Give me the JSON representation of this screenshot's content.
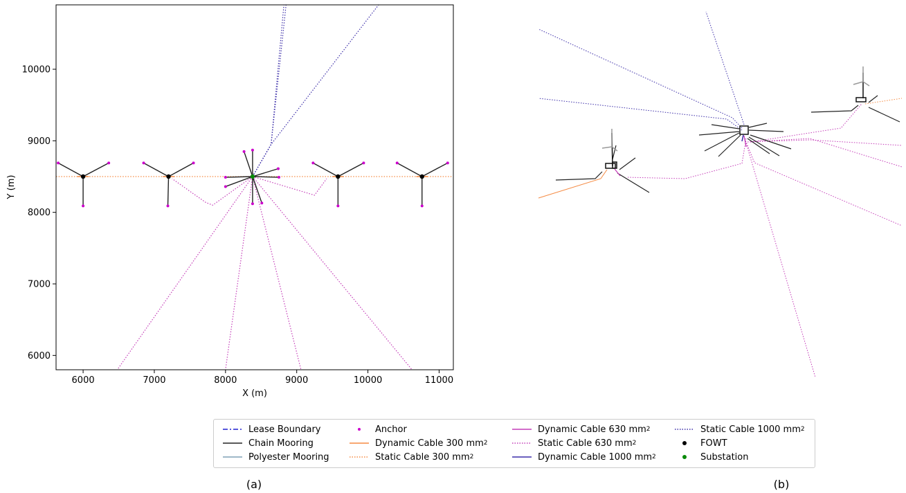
{
  "panel_labels": {
    "a": "(a)",
    "b": "(b)"
  },
  "chart_data": [
    {
      "type": "scatter",
      "xlabel": "X (m)",
      "ylabel": "Y (m)",
      "xlim": [
        5620,
        11200
      ],
      "ylim": [
        5800,
        10900
      ],
      "xticks": [
        6000,
        7000,
        8000,
        9000,
        10000,
        11000
      ],
      "yticks": [
        6000,
        7000,
        8000,
        9000,
        10000
      ],
      "substation": [
        8380,
        8500
      ],
      "fowt": [
        [
          6000,
          8500
        ],
        [
          7200,
          8500
        ],
        [
          9580,
          8500
        ],
        [
          10760,
          8500
        ]
      ],
      "anchors": [
        [
          5650,
          8690
        ],
        [
          6360,
          8690
        ],
        [
          6000,
          8090
        ],
        [
          6850,
          8690
        ],
        [
          7550,
          8690
        ],
        [
          7190,
          8090
        ],
        [
          9230,
          8690
        ],
        [
          9940,
          8690
        ],
        [
          9580,
          8090
        ],
        [
          10410,
          8690
        ],
        [
          11120,
          8690
        ],
        [
          10760,
          8090
        ],
        [
          8260,
          8850
        ],
        [
          8380,
          8870
        ],
        [
          8000,
          8490
        ],
        [
          8000,
          8360
        ],
        [
          8740,
          8610
        ],
        [
          8750,
          8490
        ],
        [
          8380,
          8120
        ],
        [
          8510,
          8130
        ]
      ],
      "static_cable_1000": [
        [
          [
            8380,
            8500
          ],
          [
            8640,
            8950
          ],
          [
            8850,
            10900
          ]
        ],
        [
          [
            8380,
            8500
          ],
          [
            8640,
            8950
          ],
          [
            8820,
            10900
          ]
        ],
        [
          [
            8380,
            8500
          ],
          [
            8640,
            8950
          ],
          [
            10150,
            10900
          ]
        ]
      ],
      "static_cable_630": [
        [
          [
            8380,
            8500
          ],
          [
            7820,
            8100
          ],
          [
            7720,
            8140
          ],
          [
            7250,
            8470
          ]
        ],
        [
          [
            8380,
            8500
          ],
          [
            9250,
            8240
          ],
          [
            9420,
            8470
          ]
        ],
        [
          [
            8380,
            8500
          ],
          [
            6480,
            5800
          ]
        ],
        [
          [
            8380,
            8500
          ],
          [
            8000,
            5800
          ]
        ],
        [
          [
            8380,
            8500
          ],
          [
            9060,
            5800
          ]
        ],
        [
          [
            8380,
            8500
          ],
          [
            10620,
            5800
          ]
        ]
      ],
      "static_cable_300": [
        [
          [
            5620,
            8500
          ],
          [
            11200,
            8500
          ]
        ]
      ]
    }
  ],
  "legend": {
    "items": [
      {
        "label": "Lease Boundary",
        "sup": "",
        "style": "dashdot",
        "color": "#1f1fcf"
      },
      {
        "label": "Chain Mooring",
        "sup": "",
        "style": "solid",
        "color": "#222222"
      },
      {
        "label": "Polyester Mooring",
        "sup": "",
        "style": "solid",
        "color": "#7ea1b5"
      },
      {
        "label": "Anchor",
        "sup": "",
        "style": "dot",
        "color": "#cc00cc"
      },
      {
        "label": "Dynamic Cable 300 mm",
        "sup": "2",
        "style": "solid",
        "color": "#f58a42"
      },
      {
        "label": "Static Cable 300 mm",
        "sup": "2",
        "style": "dotted",
        "color": "#f58a42"
      },
      {
        "label": "Dynamic Cable 630 mm",
        "sup": "2",
        "style": "solid",
        "color": "#c43cb8"
      },
      {
        "label": "Static Cable 630 mm",
        "sup": "2",
        "style": "dotted",
        "color": "#c43cb8"
      },
      {
        "label": "Dynamic Cable 1000 mm",
        "sup": "2",
        "style": "solid",
        "color": "#3a2ca8"
      },
      {
        "label": "Static Cable 1000 mm",
        "sup": "2",
        "style": "dotted",
        "color": "#3a2ca8"
      },
      {
        "label": "FOWT",
        "sup": "",
        "style": "marker",
        "color": "#000000"
      },
      {
        "label": "Substation",
        "sup": "",
        "style": "marker",
        "color": "#0a8a0a"
      }
    ]
  }
}
